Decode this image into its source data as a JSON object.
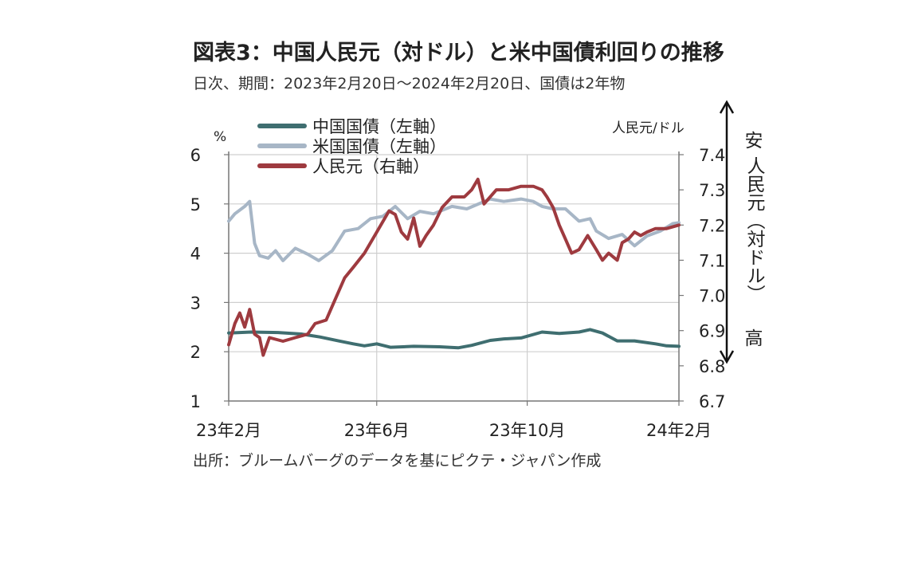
{
  "header": {
    "title": "図表3：中国人民元（対ドル）と米中国債利回りの推移",
    "subtitle": "日次、期間：2023年2月20日～2024年2月20日、国債は2年物"
  },
  "footer": {
    "source": "出所：ブルームバーグのデータを基にピクテ・ジャパン作成"
  },
  "colors": {
    "china_bond": "#3f6e70",
    "us_bond": "#a7b6c6",
    "cny": "#9e3a3f",
    "grid": "#cfcfcf",
    "axis": "#777777"
  },
  "chart_data": {
    "type": "line",
    "left_axis": {
      "unit_label": "%",
      "ylim": [
        1,
        6
      ],
      "ticks": [
        "1",
        "2",
        "3",
        "4",
        "5",
        "6"
      ]
    },
    "right_axis": {
      "unit_label": "人民元/ドル",
      "ylim": [
        6.7,
        7.4
      ],
      "ticks": [
        "6.7",
        "6.8",
        "6.9",
        "7.0",
        "7.1",
        "7.2",
        "7.3",
        "7.4"
      ]
    },
    "x_axis": {
      "ticks": [
        "23年2月",
        "23年6月",
        "23年10月",
        "24年2月"
      ],
      "x_start": "2023-02-20",
      "x_end": "2024-02-20"
    },
    "grid": true,
    "legend_position": "top-left",
    "annotation": {
      "top": "安",
      "vertical": "人民元（対ドル）",
      "bottom": "高"
    },
    "series": [
      {
        "name": "中国国債（左軸）",
        "axis": "left",
        "color_key": "china_bond",
        "points": [
          [
            "2023-02-20",
            2.38
          ],
          [
            "2023-03-10",
            2.4
          ],
          [
            "2023-04-01",
            2.39
          ],
          [
            "2023-04-20",
            2.36
          ],
          [
            "2023-05-05",
            2.3
          ],
          [
            "2023-05-20",
            2.22
          ],
          [
            "2023-06-01",
            2.16
          ],
          [
            "2023-06-10",
            2.12
          ],
          [
            "2023-06-20",
            2.16
          ],
          [
            "2023-07-01",
            2.09
          ],
          [
            "2023-07-20",
            2.11
          ],
          [
            "2023-08-10",
            2.1
          ],
          [
            "2023-08-25",
            2.08
          ],
          [
            "2023-09-05",
            2.13
          ],
          [
            "2023-09-20",
            2.23
          ],
          [
            "2023-10-01",
            2.26
          ],
          [
            "2023-10-15",
            2.28
          ],
          [
            "2023-11-01",
            2.4
          ],
          [
            "2023-11-15",
            2.37
          ],
          [
            "2023-12-01",
            2.4
          ],
          [
            "2023-12-10",
            2.45
          ],
          [
            "2023-12-20",
            2.38
          ],
          [
            "2024-01-01",
            2.22
          ],
          [
            "2024-01-15",
            2.22
          ],
          [
            "2024-02-01",
            2.16
          ],
          [
            "2024-02-10",
            2.12
          ],
          [
            "2024-02-20",
            2.11
          ]
        ]
      },
      {
        "name": "米国国債（左軸）",
        "axis": "left",
        "color_key": "us_bond",
        "points": [
          [
            "2023-02-20",
            4.65
          ],
          [
            "2023-02-25",
            4.8
          ],
          [
            "2023-03-05",
            4.95
          ],
          [
            "2023-03-09",
            5.05
          ],
          [
            "2023-03-13",
            4.2
          ],
          [
            "2023-03-17",
            3.95
          ],
          [
            "2023-03-24",
            3.9
          ],
          [
            "2023-03-30",
            4.05
          ],
          [
            "2023-04-05",
            3.85
          ],
          [
            "2023-04-15",
            4.1
          ],
          [
            "2023-04-25",
            3.98
          ],
          [
            "2023-05-04",
            3.85
          ],
          [
            "2023-05-15",
            4.05
          ],
          [
            "2023-05-25",
            4.45
          ],
          [
            "2023-06-05",
            4.5
          ],
          [
            "2023-06-15",
            4.7
          ],
          [
            "2023-06-25",
            4.75
          ],
          [
            "2023-07-05",
            4.95
          ],
          [
            "2023-07-15",
            4.7
          ],
          [
            "2023-07-25",
            4.85
          ],
          [
            "2023-08-05",
            4.8
          ],
          [
            "2023-08-20",
            4.95
          ],
          [
            "2023-09-01",
            4.9
          ],
          [
            "2023-09-20",
            5.1
          ],
          [
            "2023-10-01",
            5.05
          ],
          [
            "2023-10-15",
            5.1
          ],
          [
            "2023-10-25",
            5.05
          ],
          [
            "2023-11-01",
            4.95
          ],
          [
            "2023-11-10",
            4.9
          ],
          [
            "2023-11-20",
            4.9
          ],
          [
            "2023-12-01",
            4.65
          ],
          [
            "2023-12-10",
            4.7
          ],
          [
            "2023-12-15",
            4.45
          ],
          [
            "2023-12-25",
            4.3
          ],
          [
            "2024-01-05",
            4.38
          ],
          [
            "2024-01-15",
            4.15
          ],
          [
            "2024-01-25",
            4.35
          ],
          [
            "2024-02-05",
            4.45
          ],
          [
            "2024-02-15",
            4.6
          ],
          [
            "2024-02-20",
            4.62
          ]
        ]
      },
      {
        "name": "人民元（右軸）",
        "axis": "right",
        "color_key": "cny",
        "points": [
          [
            "2023-02-20",
            6.86
          ],
          [
            "2023-02-25",
            6.92
          ],
          [
            "2023-03-01",
            6.95
          ],
          [
            "2023-03-05",
            6.91
          ],
          [
            "2023-03-09",
            6.96
          ],
          [
            "2023-03-13",
            6.89
          ],
          [
            "2023-03-17",
            6.88
          ],
          [
            "2023-03-20",
            6.83
          ],
          [
            "2023-03-25",
            6.88
          ],
          [
            "2023-04-05",
            6.87
          ],
          [
            "2023-04-15",
            6.88
          ],
          [
            "2023-04-25",
            6.89
          ],
          [
            "2023-05-01",
            6.92
          ],
          [
            "2023-05-10",
            6.93
          ],
          [
            "2023-05-15",
            6.97
          ],
          [
            "2023-05-25",
            7.05
          ],
          [
            "2023-06-01",
            7.08
          ],
          [
            "2023-06-10",
            7.12
          ],
          [
            "2023-06-20",
            7.18
          ],
          [
            "2023-06-30",
            7.24
          ],
          [
            "2023-07-05",
            7.23
          ],
          [
            "2023-07-10",
            7.18
          ],
          [
            "2023-07-15",
            7.16
          ],
          [
            "2023-07-20",
            7.22
          ],
          [
            "2023-07-25",
            7.14
          ],
          [
            "2023-07-30",
            7.17
          ],
          [
            "2023-08-05",
            7.2
          ],
          [
            "2023-08-12",
            7.25
          ],
          [
            "2023-08-20",
            7.28
          ],
          [
            "2023-08-30",
            7.28
          ],
          [
            "2023-09-05",
            7.3
          ],
          [
            "2023-09-10",
            7.33
          ],
          [
            "2023-09-15",
            7.26
          ],
          [
            "2023-09-25",
            7.3
          ],
          [
            "2023-10-05",
            7.3
          ],
          [
            "2023-10-15",
            7.31
          ],
          [
            "2023-10-25",
            7.31
          ],
          [
            "2023-11-01",
            7.3
          ],
          [
            "2023-11-05",
            7.28
          ],
          [
            "2023-11-10",
            7.25
          ],
          [
            "2023-11-15",
            7.2
          ],
          [
            "2023-11-20",
            7.16
          ],
          [
            "2023-11-25",
            7.12
          ],
          [
            "2023-12-01",
            7.13
          ],
          [
            "2023-12-08",
            7.17
          ],
          [
            "2023-12-15",
            7.13
          ],
          [
            "2023-12-20",
            7.1
          ],
          [
            "2023-12-25",
            7.12
          ],
          [
            "2024-01-01",
            7.1
          ],
          [
            "2024-01-05",
            7.15
          ],
          [
            "2024-01-10",
            7.16
          ],
          [
            "2024-01-15",
            7.18
          ],
          [
            "2024-01-20",
            7.17
          ],
          [
            "2024-01-25",
            7.18
          ],
          [
            "2024-02-01",
            7.19
          ],
          [
            "2024-02-10",
            7.19
          ],
          [
            "2024-02-20",
            7.2
          ]
        ]
      }
    ]
  }
}
